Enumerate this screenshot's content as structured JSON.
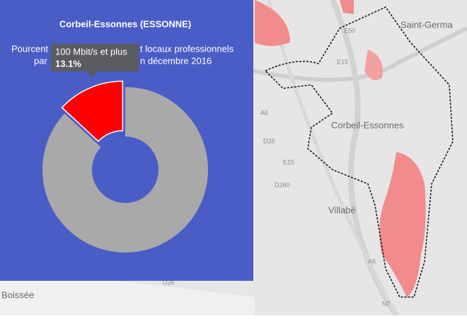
{
  "chart_data": {
    "type": "pie",
    "title": "Corbeil-Essonnes (ESSONNE)",
    "subtitle_fragments": [
      "Pourcent",
      "t locaux professionnels",
      "par",
      "n décembre 2016"
    ],
    "categories": [
      "100 Mbit/s et plus",
      null
    ],
    "values": [
      13.1,
      86.9
    ],
    "value_labels": [
      "13.1%",
      null
    ],
    "colors": [
      "#ff0000",
      "#a9a9a9"
    ]
  },
  "map": {
    "labels": [
      "Saint-Germa",
      "Corbeil-Essonnes",
      "Villabé",
      "Boissée",
      "E15",
      "E15",
      "A6",
      "A6",
      "D26",
      "D260",
      "E50",
      "D26",
      "N7"
    ]
  }
}
